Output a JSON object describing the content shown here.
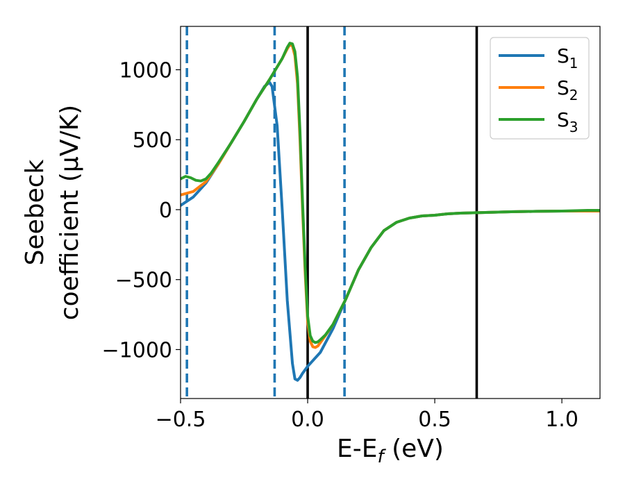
{
  "chart_data": {
    "type": "line",
    "xlabel": "E-E",
    "xlabel_sub": "f",
    "xlabel_unit": " (eV)",
    "ylabel_line1": "Seebeck",
    "ylabel_line2": "coefficient  (μV/K)",
    "xlim": [
      -0.5,
      1.15
    ],
    "ylim": [
      -1350,
      1310
    ],
    "xticks": [
      -0.5,
      0.0,
      0.5,
      1.0
    ],
    "xtick_labels": [
      "−0.5",
      "0.0",
      "0.5",
      "1.0"
    ],
    "yticks": [
      -1000,
      -500,
      0,
      500,
      1000
    ],
    "ytick_labels": [
      "−1000",
      "−500",
      "0",
      "500",
      "1000"
    ],
    "grid": false,
    "legend_position": "top-right",
    "vlines": [
      {
        "x": -0.475,
        "style": "dashed",
        "color": "#1f77b4"
      },
      {
        "x": -0.13,
        "style": "dashed",
        "color": "#1f77b4"
      },
      {
        "x": 0.0,
        "style": "solid",
        "color": "#000000"
      },
      {
        "x": 0.145,
        "style": "dashed",
        "color": "#1f77b4"
      },
      {
        "x": 0.665,
        "style": "solid",
        "color": "#000000"
      }
    ],
    "series": [
      {
        "name": "S",
        "sub": "1",
        "color": "#1f77b4",
        "x": [
          -0.5,
          -0.45,
          -0.4,
          -0.35,
          -0.3,
          -0.25,
          -0.2,
          -0.17,
          -0.15,
          -0.14,
          -0.12,
          -0.1,
          -0.08,
          -0.06,
          -0.05,
          -0.04,
          -0.03,
          -0.02,
          0.0,
          0.05,
          0.1,
          0.15,
          0.2,
          0.25,
          0.3,
          0.35,
          0.4,
          0.45,
          0.5,
          0.55,
          0.6,
          0.7,
          0.8,
          0.9,
          1.0,
          1.1,
          1.15
        ],
        "y": [
          30,
          90,
          190,
          330,
          480,
          630,
          790,
          880,
          910,
          880,
          600,
          0,
          -650,
          -1100,
          -1210,
          -1220,
          -1200,
          -1170,
          -1120,
          -1020,
          -850,
          -640,
          -430,
          -270,
          -150,
          -90,
          -60,
          -45,
          -40,
          -30,
          -25,
          -20,
          -15,
          -12,
          -10,
          -10,
          -10
        ]
      },
      {
        "name": "S",
        "sub": "2",
        "color": "#ff7f0e",
        "x": [
          -0.5,
          -0.45,
          -0.4,
          -0.35,
          -0.3,
          -0.25,
          -0.2,
          -0.15,
          -0.1,
          -0.08,
          -0.07,
          -0.06,
          -0.05,
          -0.04,
          -0.03,
          -0.02,
          -0.01,
          0.0,
          0.01,
          0.02,
          0.03,
          0.04,
          0.05,
          0.07,
          0.1,
          0.15,
          0.2,
          0.25,
          0.3,
          0.35,
          0.4,
          0.45,
          0.5,
          0.55,
          0.6,
          0.7,
          0.8,
          0.9,
          1.0,
          1.1,
          1.15
        ],
        "y": [
          105,
          130,
          200,
          330,
          480,
          630,
          790,
          930,
          1080,
          1150,
          1180,
          1170,
          1100,
          900,
          500,
          0,
          -450,
          -800,
          -940,
          -980,
          -985,
          -975,
          -950,
          -900,
          -820,
          -640,
          -430,
          -270,
          -150,
          -90,
          -60,
          -45,
          -40,
          -30,
          -25,
          -20,
          -15,
          -12,
          -10,
          -10,
          -10
        ]
      },
      {
        "name": "S",
        "sub": "3",
        "color": "#2ca02c",
        "x": [
          -0.5,
          -0.48,
          -0.46,
          -0.44,
          -0.42,
          -0.4,
          -0.38,
          -0.35,
          -0.3,
          -0.25,
          -0.2,
          -0.15,
          -0.1,
          -0.08,
          -0.07,
          -0.06,
          -0.05,
          -0.04,
          -0.03,
          -0.02,
          -0.01,
          0.0,
          0.01,
          0.02,
          0.03,
          0.04,
          0.05,
          0.07,
          0.1,
          0.15,
          0.2,
          0.25,
          0.3,
          0.35,
          0.4,
          0.45,
          0.5,
          0.55,
          0.6,
          0.7,
          0.8,
          0.9,
          1.0,
          1.1,
          1.15
        ],
        "y": [
          220,
          238,
          228,
          210,
          205,
          220,
          260,
          340,
          480,
          630,
          790,
          930,
          1080,
          1160,
          1190,
          1185,
          1130,
          950,
          560,
          50,
          -400,
          -760,
          -900,
          -940,
          -950,
          -945,
          -930,
          -895,
          -820,
          -640,
          -430,
          -270,
          -150,
          -90,
          -60,
          -45,
          -40,
          -30,
          -25,
          -20,
          -15,
          -12,
          -10,
          -5,
          -5
        ]
      }
    ]
  }
}
